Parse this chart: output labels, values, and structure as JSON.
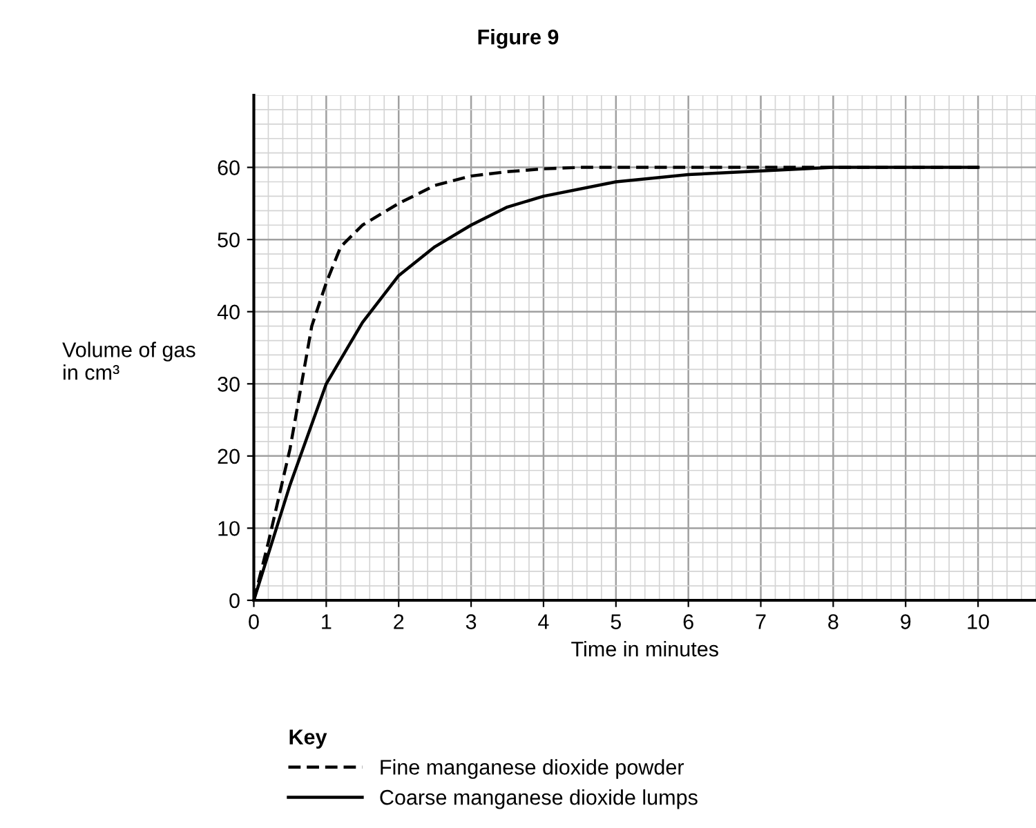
{
  "chart_data": {
    "type": "line",
    "title": "Figure 9",
    "xlabel": "Time in minutes",
    "ylabel": "Volume of gas\nin cm³",
    "legend_title": "Key",
    "series": [
      {
        "name": "Fine manganese dioxide powder",
        "color": "#000000",
        "line_style": "dashed",
        "x": [
          0,
          0.2,
          0.5,
          0.8,
          1.0,
          1.2,
          1.5,
          2.0,
          2.5,
          3.0,
          3.5,
          4.0,
          4.5,
          6,
          8,
          10
        ],
        "values": [
          0,
          8,
          21,
          38,
          44,
          49,
          52,
          55,
          57.5,
          58.8,
          59.4,
          59.8,
          60,
          60,
          60,
          60
        ]
      },
      {
        "name": "Coarse manganese dioxide lumps",
        "color": "#000000",
        "line_style": "solid",
        "x": [
          0,
          0.5,
          1.0,
          1.5,
          2.0,
          2.5,
          3.0,
          3.5,
          4.0,
          5,
          6,
          7,
          8,
          9,
          10
        ],
        "values": [
          0,
          16,
          30,
          38.5,
          45,
          49,
          52,
          54.5,
          56,
          58,
          59,
          59.5,
          60,
          60,
          60
        ]
      }
    ],
    "xlim": [
      0,
      10.8
    ],
    "ylim": [
      0,
      70
    ],
    "xticks": [
      0,
      1,
      2,
      3,
      4,
      5,
      6,
      7,
      8,
      9,
      10
    ],
    "yticks": [
      0,
      10,
      20,
      30,
      40,
      50,
      60
    ],
    "grid": true,
    "legend": "bottom",
    "marker": "none"
  }
}
